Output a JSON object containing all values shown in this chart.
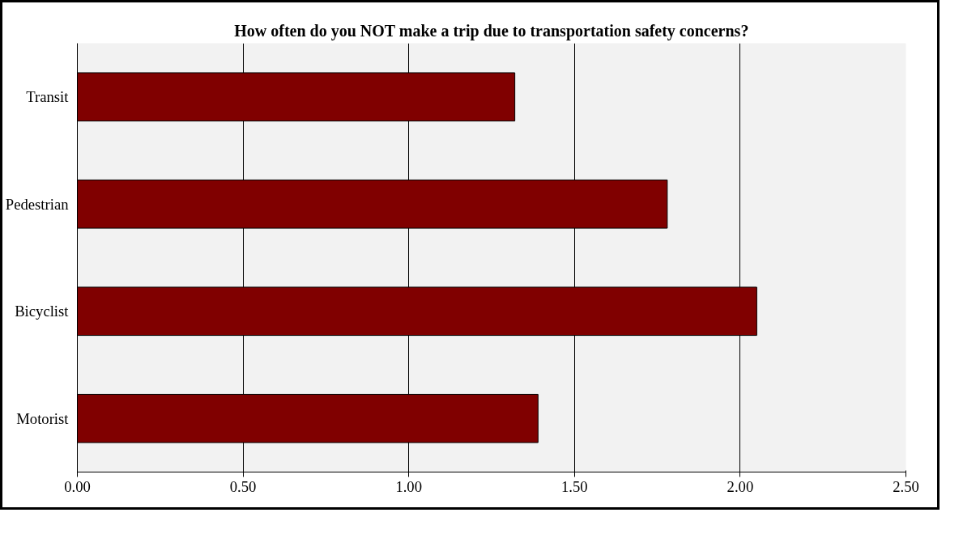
{
  "chart_data": {
    "type": "bar",
    "orientation": "horizontal",
    "title": "How often do you NOT make a trip due to transportation safety concerns?",
    "categories": [
      "Transit",
      "Pedestrian",
      "Bicyclist",
      "Motorist"
    ],
    "values": [
      1.32,
      1.78,
      2.05,
      1.39
    ],
    "color": "#800000",
    "xlim": [
      0,
      2.5
    ],
    "xticks": [
      {
        "value": 0,
        "label": "0.00"
      },
      {
        "value": 0.5,
        "label": "0.50"
      },
      {
        "value": 1,
        "label": "1.00"
      },
      {
        "value": 1.5,
        "label": "1.50"
      },
      {
        "value": 2,
        "label": "2.00"
      },
      {
        "value": 2.5,
        "label": "2.50"
      }
    ],
    "grid": "x"
  }
}
